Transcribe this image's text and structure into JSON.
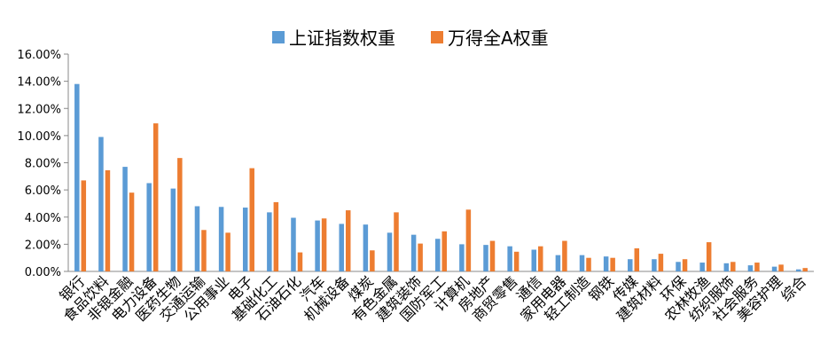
{
  "chart_data": {
    "type": "bar",
    "categories": [
      "银行",
      "食品饮料",
      "非银金融",
      "电力设备",
      "医药生物",
      "交通运输",
      "公用事业",
      "电子",
      "基础化工",
      "石油石化",
      "汽车",
      "机械设备",
      "煤炭",
      "有色金属",
      "建筑装饰",
      "国防军工",
      "计算机",
      "房地产",
      "商贸零售",
      "通信",
      "家用电器",
      "轻工制造",
      "钢铁",
      "传媒",
      "建筑材料",
      "环保",
      "农林牧渔",
      "纺织服饰",
      "社会服务",
      "美容护理",
      "综合"
    ],
    "series": [
      {
        "name": "上证指数权重",
        "color": "#5B9BD5",
        "values": [
          13.8,
          9.9,
          7.7,
          6.5,
          6.1,
          4.8,
          4.75,
          4.7,
          4.35,
          3.95,
          3.75,
          3.5,
          3.45,
          2.85,
          2.7,
          2.4,
          2.0,
          1.95,
          1.85,
          1.6,
          1.2,
          1.2,
          1.1,
          0.9,
          0.9,
          0.7,
          0.65,
          0.6,
          0.45,
          0.35,
          0.15
        ]
      },
      {
        "name": "万得全A权重",
        "color": "#ED7D31",
        "values": [
          6.7,
          7.45,
          5.8,
          10.9,
          8.35,
          3.05,
          2.85,
          7.6,
          5.1,
          1.4,
          3.9,
          4.5,
          1.55,
          4.35,
          2.05,
          2.95,
          4.55,
          2.25,
          1.45,
          1.85,
          2.25,
          1.0,
          1.0,
          1.7,
          1.3,
          0.9,
          2.15,
          0.7,
          0.65,
          0.5,
          0.25
        ]
      }
    ],
    "yticks": [
      "0.00%",
      "2.00%",
      "4.00%",
      "6.00%",
      "8.00%",
      "10.00%",
      "12.00%",
      "14.00%",
      "16.00%"
    ],
    "ylim": [
      0,
      16
    ],
    "grid": false,
    "legend_position": "top-center"
  }
}
